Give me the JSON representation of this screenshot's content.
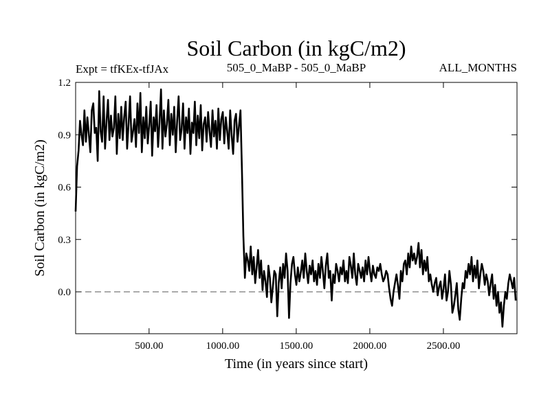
{
  "chart_data": {
    "type": "line",
    "title": "Soil Carbon (in kgC/m2)",
    "subtitle_left": "Expt = tfKEx-tfJAx",
    "subtitle_center": "505_0_MaBP - 505_0_MaBP",
    "subtitle_right": "ALL_MONTHS",
    "xlabel": "Time (in years since start)",
    "ylabel": "Soil Carbon (in kgC/m2)",
    "xlim": [
      1,
      3000
    ],
    "ylim": [
      -0.24,
      1.2
    ],
    "x_ticks": [
      500,
      1000,
      1500,
      2000,
      2500
    ],
    "x_tick_labels": [
      "500.00",
      "1000.00",
      "1500.00",
      "2000.00",
      "2500.00"
    ],
    "y_ticks": [
      0.0,
      0.3,
      0.6,
      0.9,
      1.2
    ],
    "y_tick_labels": [
      "0.0",
      "0.3",
      "0.6",
      "0.9",
      "1.2"
    ],
    "zero_line": {
      "value": 0.0,
      "style": "dashed"
    },
    "grid": false,
    "legend": "none",
    "series": [
      {
        "color": "#000000",
        "x_start": 1,
        "x_step": 10,
        "values": [
          0.46,
          0.72,
          0.81,
          0.98,
          0.9,
          0.84,
          1.04,
          0.86,
          1.0,
          0.9,
          0.8,
          1.04,
          1.08,
          0.91,
          0.94,
          0.75,
          1.15,
          0.92,
          0.86,
          1.12,
          0.82,
          0.98,
          1.1,
          0.87,
          1.01,
          0.89,
          0.94,
          1.12,
          0.79,
          1.02,
          0.88,
          1.06,
          0.87,
          1.0,
          1.09,
          0.82,
          0.97,
          1.12,
          0.86,
          0.92,
          0.99,
          0.83,
          1.08,
          0.91,
          1.14,
          0.8,
          1.0,
          0.88,
          1.06,
          0.85,
          0.95,
          1.09,
          0.78,
          1.0,
          0.92,
          1.07,
          0.83,
          0.97,
          1.16,
          0.82,
          1.04,
          0.89,
          0.96,
          1.1,
          0.84,
          1.02,
          0.9,
          1.06,
          0.8,
          0.98,
          1.12,
          0.87,
          0.93,
          1.08,
          0.82,
          1.0,
          0.91,
          1.05,
          0.79,
          0.97,
          0.91,
          1.09,
          0.84,
          1.01,
          0.88,
          1.07,
          0.81,
          0.96,
          1.0,
          0.86,
          1.03,
          0.92,
          0.83,
          1.04,
          0.89,
          0.98,
          0.82,
          1.05,
          0.87,
          0.99,
          1.03,
          0.85,
          1.0,
          0.92,
          0.82,
          1.04,
          0.9,
          0.79,
          0.98,
          1.02,
          0.86,
          0.95,
          1.04,
          0.7,
          0.32,
          0.08,
          0.22,
          0.18,
          0.12,
          0.26,
          0.1,
          0.2,
          0.05,
          0.14,
          0.24,
          0.08,
          0.18,
          0.01,
          0.12,
          0.06,
          -0.03,
          0.15,
          0.08,
          -0.06,
          0.03,
          0.12,
          0.1,
          -0.14,
          0.05,
          0.14,
          0.02,
          0.16,
          0.08,
          0.22,
          0.12,
          -0.15,
          0.05,
          0.16,
          0.2,
          0.1,
          0.04,
          0.14,
          0.06,
          0.11,
          0.18,
          0.08,
          0.22,
          0.12,
          0.05,
          0.15,
          0.1,
          0.18,
          0.06,
          0.12,
          0.04,
          0.16,
          0.08,
          0.2,
          0.12,
          0.02,
          0.15,
          0.22,
          0.08,
          0.12,
          -0.05,
          0.1,
          0.05,
          0.16,
          0.12,
          0.06,
          0.14,
          0.1,
          0.18,
          0.06,
          0.12,
          0.05,
          0.2,
          0.15,
          0.08,
          0.22,
          0.1,
          0.04,
          0.16,
          0.12,
          0.08,
          0.14,
          0.06,
          0.18,
          0.1,
          0.2,
          0.12,
          0.06,
          0.15,
          0.1,
          0.08,
          0.14,
          0.12,
          0.16,
          0.1,
          0.06,
          0.08,
          0.12,
          0.1,
          0.02,
          -0.04,
          -0.08,
          0.0,
          0.05,
          0.1,
          0.04,
          -0.04,
          0.12,
          0.06,
          0.16,
          0.18,
          0.1,
          0.22,
          0.14,
          0.26,
          0.18,
          0.22,
          0.16,
          0.2,
          0.28,
          0.14,
          0.24,
          0.1,
          0.18,
          0.12,
          0.2,
          0.06,
          0.1,
          0.04,
          0.0,
          0.05,
          0.08,
          -0.02,
          0.03,
          0.06,
          -0.04,
          0.02,
          0.1,
          -0.05,
          0.0,
          0.12,
          0.04,
          -0.12,
          -0.08,
          -0.02,
          0.05,
          -0.1,
          -0.16,
          -0.04,
          0.05,
          0.02,
          0.12,
          0.08,
          0.16,
          0.1,
          0.2,
          0.06,
          0.15,
          0.08,
          0.18,
          0.02,
          0.1,
          0.16,
          0.12,
          0.04,
          0.1,
          0.06,
          -0.02,
          0.05,
          0.1,
          -0.04,
          0.04,
          -0.08,
          0.0,
          -0.12,
          -0.06,
          -0.2,
          -0.08,
          0.0,
          -0.04,
          0.05,
          0.1,
          0.06,
          0.02,
          0.08,
          -0.05
        ]
      }
    ]
  }
}
